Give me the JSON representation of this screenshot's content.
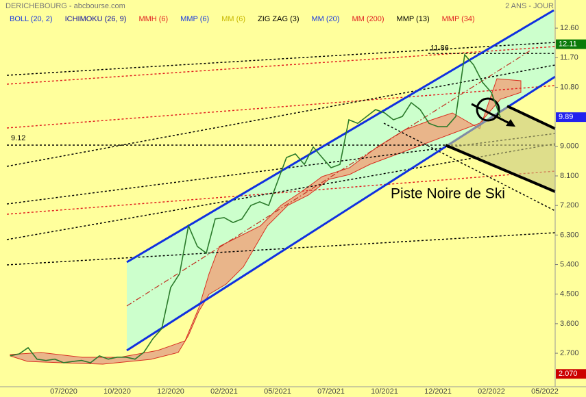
{
  "chart_data": {
    "type": "line",
    "title": "DERICHEBOURG - abcbourse.com",
    "subtitle": "2 ANS - JOUR",
    "indicators": [
      {
        "name": "BOLL (20, 2)",
        "color": "#1a3adf"
      },
      {
        "name": "ICHIMOKU (26, 9)",
        "color": "#1010a0"
      },
      {
        "name": "MMH (6)",
        "color": "#e02020"
      },
      {
        "name": "MMP (6)",
        "color": "#1a3adf"
      },
      {
        "name": "MM (6)",
        "color": "#c8b800"
      },
      {
        "name": "ZIG ZAG (3)",
        "color": "#000000"
      },
      {
        "name": "MM (20)",
        "color": "#1a3adf"
      },
      {
        "name": "MM (200)",
        "color": "#e02020"
      },
      {
        "name": "MMP (13)",
        "color": "#000000"
      },
      {
        "name": "MMP (34)",
        "color": "#e02020"
      }
    ],
    "categories": [
      null,
      null,
      null,
      null,
      null,
      null,
      "07/2020",
      null,
      null,
      null,
      null,
      null,
      "10/2020",
      null,
      null,
      null,
      null,
      null,
      "12/2020",
      null,
      null,
      null,
      null,
      null,
      "02/2021",
      null,
      null,
      null,
      null,
      null,
      "05/2021",
      null,
      null,
      null,
      null,
      null,
      "07/2021",
      null,
      null,
      null,
      null,
      null,
      "10/2021",
      null,
      null,
      null,
      null,
      null,
      "12/2021",
      null,
      null,
      null,
      null,
      null,
      "02/2022",
      null,
      null,
      null,
      null,
      null,
      "05/2022",
      null
    ],
    "series": [
      {
        "color": "#2a7a2a",
        "values": [
          2.62,
          2.68,
          2.87,
          2.52,
          2.48,
          2.52,
          2.41,
          2.45,
          2.48,
          2.41,
          2.62,
          2.52,
          2.58,
          2.58,
          2.52,
          2.73,
          3.14,
          3.45,
          4.7,
          5.12,
          6.58,
          5.95,
          5.75,
          6.79,
          6.83,
          6.68,
          6.79,
          7.2,
          7.31,
          7.2,
          7.93,
          8.66,
          8.77,
          8.45,
          8.98,
          8.66,
          8.35,
          8.45,
          9.81,
          9.7,
          9.91,
          10.12,
          10.02,
          9.81,
          9.91,
          10.33,
          10.12,
          9.7,
          9.6,
          9.6,
          9.91,
          11.79,
          11.48,
          10.95,
          10.64,
          9.89,
          null,
          null,
          null,
          null,
          null,
          null
        ]
      }
    ],
    "ylim": [
      1.68,
      13.04
    ],
    "yticks": [
      {
        "value": 12.6,
        "label": "12.60"
      },
      {
        "value": 11.7,
        "label": "11.70"
      },
      {
        "value": 10.8,
        "label": "10.80"
      },
      {
        "value": 9,
        "label": "9.000"
      },
      {
        "value": 8.1,
        "label": "8.100"
      },
      {
        "value": 7.2,
        "label": "7.200"
      },
      {
        "value": 6.3,
        "label": "6.300"
      },
      {
        "value": 5.4,
        "label": "5.400"
      },
      {
        "value": 4.5,
        "label": "4.500"
      },
      {
        "value": 3.6,
        "label": "3.600"
      },
      {
        "value": 2.7,
        "label": "2.700"
      }
    ],
    "price_tags": [
      {
        "value": 12.11,
        "label": "12.11",
        "color": "#0a7a0a"
      },
      {
        "value": 9.89,
        "label": "9.89",
        "color": "#2222ee"
      },
      {
        "value": 2.07,
        "label": "2.070",
        "color": "#cc0000"
      }
    ],
    "value_annotations": [
      {
        "value": 11.86,
        "label": "11.86"
      },
      {
        "value": 9.12,
        "label": "9.12"
      }
    ],
    "annotation": "Piste Noire de Ski"
  }
}
